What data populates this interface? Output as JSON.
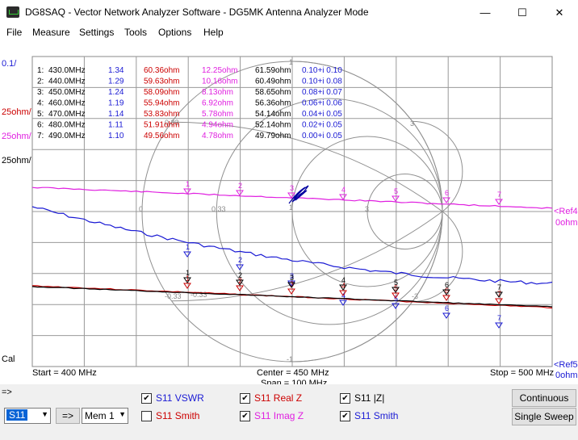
{
  "window": {
    "title": "DG8SAQ  -  Vector Network Analyzer Software - DG5MK Antenna Analyzer Mode",
    "minimize": "—",
    "maximize": "☐",
    "close": "✕"
  },
  "menu": [
    "File",
    "Measure",
    "Settings",
    "Tools",
    "Options",
    "Help"
  ],
  "left_scale": {
    "top": "0.1/",
    "real": "25ohm/",
    "imag": "25ohm/",
    "absz": "25ohm/",
    "cal": "Cal"
  },
  "right_labels": {
    "ref_top": "<Ref4",
    "ref_top_unit": "0ohm",
    "ref_bottom": "<Ref5",
    "ref_bottom_unit": "0ohm"
  },
  "freq_axis": {
    "start": "Start = 400 MHz",
    "center": "Center = 450 MHz",
    "span": "Span = 100 MHz",
    "stop": "Stop = 500 MHz"
  },
  "smith_labels": {
    "r0": "0",
    "r033": "0.33",
    "r1": "1",
    "r3": "3",
    "x3": "3",
    "x1": "1",
    "x033": "0.33",
    "xm033": "-0.33",
    "xm1": "-1",
    "xm3": "-3",
    "xm033b": "-0.33"
  },
  "marker_table": [
    {
      "id": "1:",
      "freq": "430.0MHz",
      "vswr": "1.34",
      "real": "60.36ohm",
      "imag": "12.25ohm",
      "absz": "61.59ohm",
      "s11": "0.10+i 0.10"
    },
    {
      "id": "2:",
      "freq": "440.0MHz",
      "vswr": "1.29",
      "real": "59.63ohm",
      "imag": "10.16ohm",
      "absz": "60.49ohm",
      "s11": "0.10+i 0.08"
    },
    {
      "id": "3:",
      "freq": "450.0MHz",
      "vswr": "1.24",
      "real": "58.09ohm",
      "imag": "8.13ohm",
      "absz": "58.65ohm",
      "s11": "0.08+i 0.07"
    },
    {
      "id": "4:",
      "freq": "460.0MHz",
      "vswr": "1.19",
      "real": "55.94ohm",
      "imag": "6.92ohm",
      "absz": "56.36ohm",
      "s11": "0.06+i 0.06"
    },
    {
      "id": "5:",
      "freq": "470.0MHz",
      "vswr": "1.14",
      "real": "53.83ohm",
      "imag": "5.78ohm",
      "absz": "54.14ohm",
      "s11": "0.04+i 0.05"
    },
    {
      "id": "6:",
      "freq": "480.0MHz",
      "vswr": "1.11",
      "real": "51.91ohm",
      "imag": "4.94ohm",
      "absz": "52.14ohm",
      "s11": "0.02+i 0.05"
    },
    {
      "id": "7:",
      "freq": "490.0MHz",
      "vswr": "1.10",
      "real": "49.56ohm",
      "imag": "4.78ohm",
      "absz": "49.79ohm",
      "s11": "0.00+i 0.05"
    }
  ],
  "marker_numbers": [
    "1",
    "2",
    "3",
    "4",
    "5",
    "6",
    "7"
  ],
  "traces": {
    "vswr_color": "#1a1ad4",
    "real_color": "#cc0000",
    "imag_color": "#e020e0",
    "absz_color": "#000000",
    "smith_color": "#0000a0"
  },
  "controls": {
    "prompt": "=>",
    "param_select": "S11",
    "arrow_button": "=>",
    "mem_select": "Mem 1",
    "continuous": "Continuous",
    "single_sweep": "Single Sweep",
    "checks": [
      {
        "label": "S11  VSWR",
        "checked": true,
        "mark": "✔",
        "color": "#1a1ad4"
      },
      {
        "label": "S11  Smith",
        "checked": false,
        "mark": "",
        "color": "#cc0000"
      },
      {
        "label": "S11  Real Z",
        "checked": true,
        "mark": "✔",
        "color": "#cc0000"
      },
      {
        "label": "S11  Imag Z",
        "checked": true,
        "mark": "✔",
        "color": "#e020e0"
      },
      {
        "label": "S11  |Z|",
        "checked": true,
        "mark": "✔",
        "color": "#000000"
      },
      {
        "label": "S11  Smith",
        "checked": true,
        "mark": "✔",
        "color": "#1a1ad4"
      }
    ]
  }
}
